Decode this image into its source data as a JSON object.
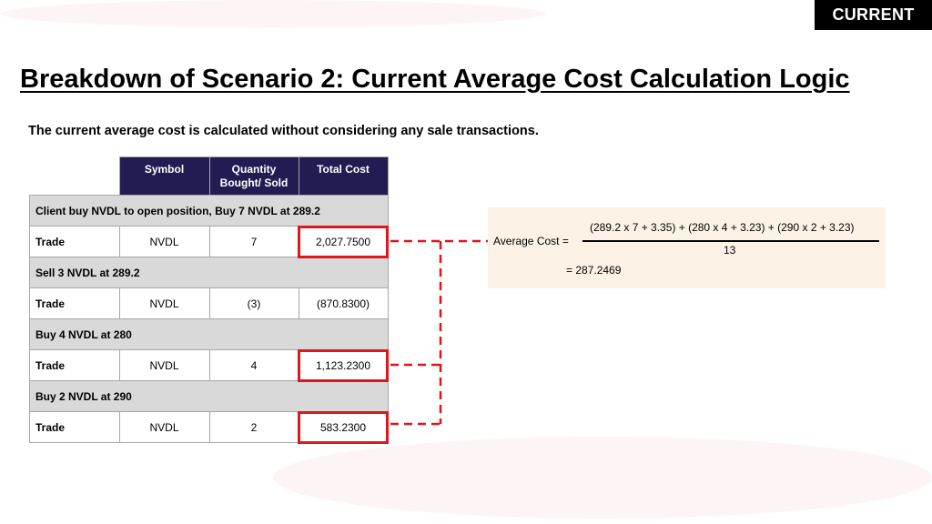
{
  "badge": "CURRENT",
  "title": "Breakdown of Scenario 2: Current Average Cost Calculation Logic",
  "subtitle": "The current average cost is calculated without considering any sale transactions.",
  "colors": {
    "header_bg": "#221c52",
    "group_bg": "#d9d9d9",
    "highlight": "#e0161b",
    "formula_bg": "#fdf2e6"
  },
  "table": {
    "headers": [
      "",
      "Symbol",
      "Quantity Bought/ Sold",
      "Total Cost"
    ],
    "sections": [
      {
        "group": "Client buy NVDL to open position, Buy 7 NVDL at 289.2",
        "row": [
          "Trade",
          "NVDL",
          "7",
          "2,027.7500"
        ],
        "highlighted": true
      },
      {
        "group": "Sell 3 NVDL at 289.2",
        "row": [
          "Trade",
          "NVDL",
          "(3)",
          "(870.8300)"
        ],
        "highlighted": false
      },
      {
        "group": "Buy 4 NVDL at 280",
        "row": [
          "Trade",
          "NVDL",
          "4",
          "1,123.2300"
        ],
        "highlighted": true
      },
      {
        "group": "Buy 2 NVDL at 290",
        "row": [
          "Trade",
          "NVDL",
          "2",
          "583.2300"
        ],
        "highlighted": true
      }
    ]
  },
  "formula": {
    "label": "Average Cost =",
    "numerator": "(289.2 x 7 + 3.35) + (280 x 4 + 3.23) + (290 x 2 + 3.23)",
    "denominator": "13",
    "result": "=  287.2469"
  }
}
